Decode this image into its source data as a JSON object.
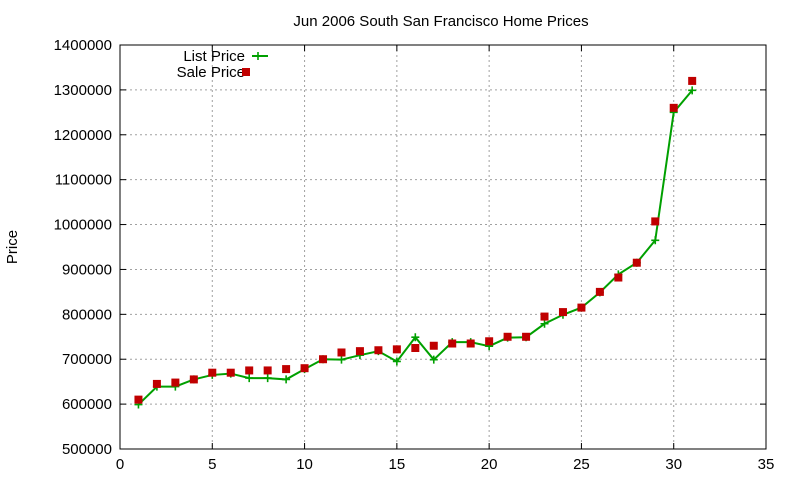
{
  "chart_data": {
    "type": "line",
    "title": "Jun 2006 South San Francisco Home Prices",
    "xlabel": "",
    "ylabel": "Price",
    "xlim": [
      0,
      35
    ],
    "ylim": [
      500000,
      1400000
    ],
    "xticks": [
      "0",
      "5",
      "10",
      "15",
      "20",
      "25",
      "30",
      "35"
    ],
    "yticks": [
      "500000",
      "600000",
      "700000",
      "800000",
      "900000",
      "1000000",
      "1100000",
      "1200000",
      "1300000",
      "1400000"
    ],
    "grid": true,
    "legend_position": "top-left",
    "x": [
      1,
      2,
      3,
      4,
      5,
      6,
      7,
      8,
      9,
      10,
      11,
      12,
      13,
      14,
      15,
      16,
      17,
      18,
      19,
      20,
      21,
      22,
      23,
      24,
      25,
      26,
      27,
      28,
      29,
      30,
      31
    ],
    "series": [
      {
        "name": "List Price",
        "style": "linespoints",
        "marker": "plus",
        "color": "#00a000",
        "values": [
          599000,
          639000,
          639000,
          655000,
          665000,
          668000,
          658000,
          658000,
          655000,
          678000,
          700000,
          699000,
          709000,
          718000,
          695000,
          749000,
          699000,
          738000,
          738000,
          729000,
          748000,
          749000,
          779000,
          799000,
          815000,
          849000,
          889000,
          915000,
          965000,
          1250000,
          1299000
        ]
      },
      {
        "name": "Sale Price",
        "style": "points",
        "marker": "square",
        "color": "#c00000",
        "values": [
          610000,
          645000,
          648000,
          655000,
          670000,
          670000,
          675000,
          675000,
          678000,
          680000,
          700000,
          715000,
          718000,
          720000,
          722000,
          725000,
          730000,
          735000,
          735000,
          740000,
          750000,
          750000,
          795000,
          805000,
          815000,
          850000,
          882000,
          915000,
          1007000,
          1260000,
          1320000
        ]
      }
    ]
  }
}
